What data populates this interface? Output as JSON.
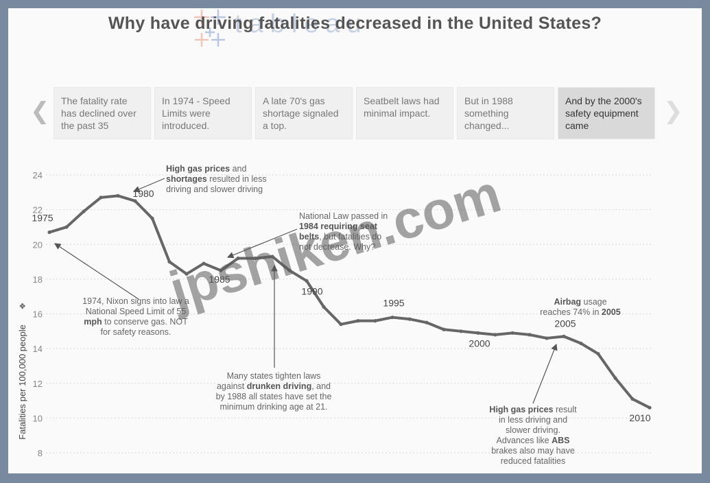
{
  "title": "Why have driving fatalities decreased in the United States?",
  "logo": {
    "text": "tableau"
  },
  "watermark": "jpshiken.com",
  "nav": {
    "prev_icon": "chevron-left-icon",
    "next_icon": "chevron-right-icon"
  },
  "story_points": [
    {
      "label": "The fatality rate has declined over the past 35",
      "active": false
    },
    {
      "label": "In 1974 - Speed Limits were introduced.",
      "active": false
    },
    {
      "label": "A late 70's gas shortage signaled a top.",
      "active": false
    },
    {
      "label": "Seatbelt laws had minimal impact.",
      "active": false
    },
    {
      "label": "But in 1988 something changed...",
      "active": false
    },
    {
      "label": "And by the 2000's safety equipment came",
      "active": true
    }
  ],
  "chart_data": {
    "type": "line",
    "ylabel": "Fatalities per 100,000 people",
    "ylim": [
      8,
      24
    ],
    "yticks": [
      8,
      10,
      12,
      14,
      16,
      18,
      20,
      22,
      24
    ],
    "grid": true,
    "series_color": "#666666",
    "x": [
      1975,
      1976,
      1977,
      1978,
      1979,
      1980,
      1981,
      1982,
      1983,
      1984,
      1985,
      1986,
      1987,
      1988,
      1989,
      1990,
      1991,
      1992,
      1993,
      1994,
      1995,
      1996,
      1997,
      1998,
      1999,
      2000,
      2001,
      2002,
      2003,
      2004,
      2005,
      2006,
      2007,
      2008,
      2009,
      2010
    ],
    "values": [
      20.7,
      21.0,
      21.9,
      22.7,
      22.8,
      22.5,
      21.5,
      19.0,
      18.3,
      18.9,
      18.5,
      19.2,
      19.2,
      19.3,
      18.5,
      17.9,
      16.4,
      15.4,
      15.6,
      15.6,
      15.8,
      15.7,
      15.5,
      15.1,
      15.0,
      14.9,
      14.8,
      14.9,
      14.8,
      14.6,
      14.7,
      14.3,
      13.7,
      12.3,
      11.1,
      10.6
    ],
    "year_labels": [
      {
        "year": 1975,
        "label": "1975"
      },
      {
        "year": 1980,
        "label": "1980"
      },
      {
        "year": 1985,
        "label": "1985"
      },
      {
        "year": 1990,
        "label": "1990"
      },
      {
        "year": 1995,
        "label": "1995"
      },
      {
        "year": 2000,
        "label": "2000"
      },
      {
        "year": 2005,
        "label": "2005"
      },
      {
        "year": 2010,
        "label": "2010"
      }
    ],
    "annotations": [
      {
        "id": "gas",
        "lines": [
          [
            [
              "High gas prices",
              true
            ],
            [
              " and",
              false
            ]
          ],
          [
            [
              "shortages",
              true
            ],
            [
              " resulted in less",
              false
            ]
          ],
          [
            [
              "driving and slower driving",
              false
            ]
          ]
        ]
      },
      {
        "id": "seatbelt",
        "lines": [
          [
            [
              "National Law passed in",
              false
            ]
          ],
          [
            [
              "1984 requiring seat",
              true
            ]
          ],
          [
            [
              "belts",
              true
            ],
            [
              ", but fatalities do",
              false
            ]
          ],
          [
            [
              "not decrease.  Why?",
              false
            ]
          ]
        ]
      },
      {
        "id": "nixon",
        "lines": [
          [
            [
              "1974, Nixon signs into law a",
              false
            ]
          ],
          [
            [
              "National Speed Limit of 55",
              false
            ]
          ],
          [
            [
              "mph",
              true
            ],
            [
              " to conserve gas.  NOT",
              false
            ]
          ],
          [
            [
              "for safety reasons.",
              false
            ]
          ]
        ]
      },
      {
        "id": "drunk",
        "lines": [
          [
            [
              "Many states tighten laws",
              false
            ]
          ],
          [
            [
              "against ",
              false
            ],
            [
              "drunken driving",
              true
            ],
            [
              ", and",
              false
            ]
          ],
          [
            [
              "by 1988 all states have set the",
              false
            ]
          ],
          [
            [
              "minimum drinking age at 21.",
              false
            ]
          ]
        ]
      },
      {
        "id": "airbag",
        "lines": [
          [
            [
              "Airbag",
              true
            ],
            [
              " usage",
              false
            ]
          ],
          [
            [
              "reaches 74% in ",
              false
            ],
            [
              "2005",
              true
            ]
          ]
        ]
      },
      {
        "id": "abs",
        "lines": [
          [
            [
              "High gas prices",
              true
            ],
            [
              " result",
              false
            ]
          ],
          [
            [
              "in less driving and",
              false
            ]
          ],
          [
            [
              "slower driving.",
              false
            ]
          ],
          [
            [
              "Advances like ",
              false
            ],
            [
              "ABS",
              true
            ]
          ],
          [
            [
              "brakes also may have",
              false
            ]
          ],
          [
            [
              "reduced fatalities",
              false
            ]
          ]
        ]
      }
    ]
  }
}
